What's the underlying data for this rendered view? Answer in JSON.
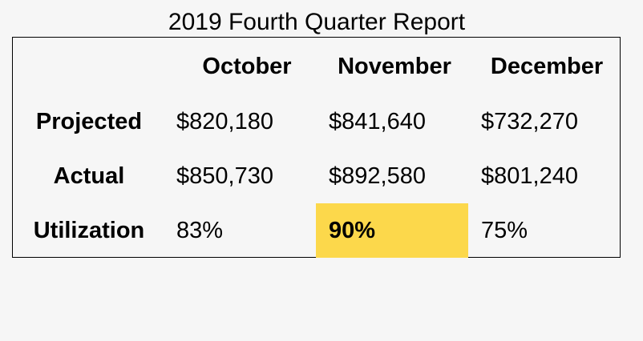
{
  "report": {
    "title": "2019 Fourth Quarter Report",
    "columns": [
      "October",
      "November",
      "December"
    ],
    "rows": [
      {
        "label": "Projected",
        "values": [
          "$820,180",
          "$841,640",
          "$732,270"
        ]
      },
      {
        "label": "Actual",
        "values": [
          "$850,730",
          "$892,580",
          "$801,240"
        ]
      },
      {
        "label": "Utilization",
        "values": [
          "83%",
          "90%",
          "75%"
        ]
      }
    ],
    "highlight_color": "#fcd84b"
  }
}
